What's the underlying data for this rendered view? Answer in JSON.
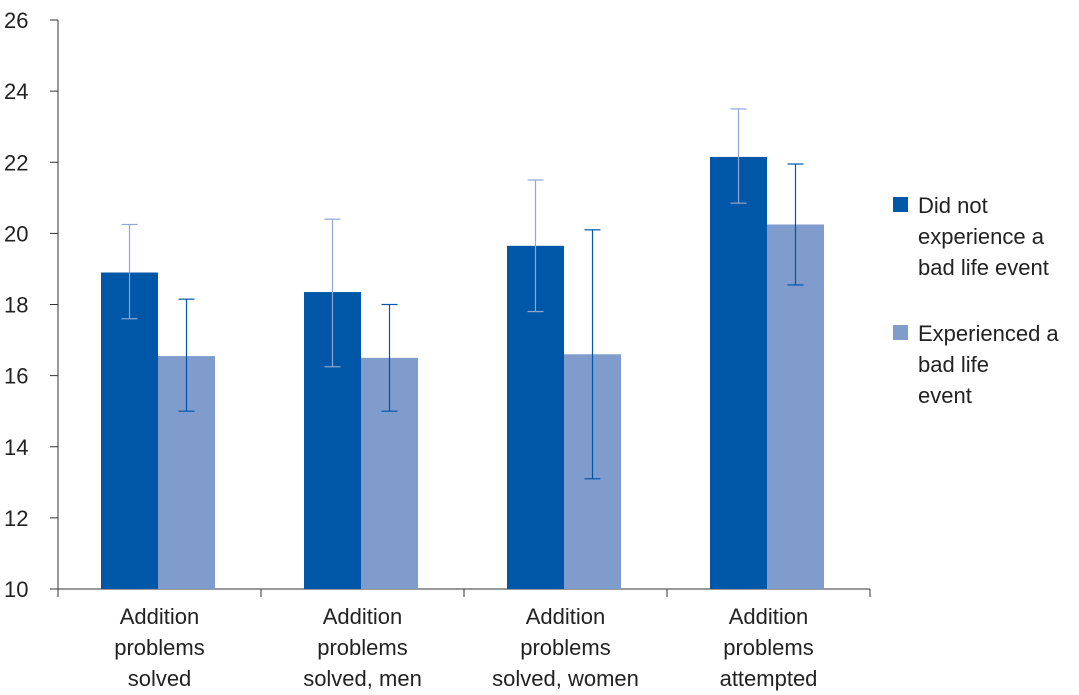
{
  "chart_data": {
    "type": "bar",
    "title": "",
    "xlabel": "",
    "ylabel": "",
    "ylim": [
      10,
      26
    ],
    "yticks": [
      10,
      12,
      14,
      16,
      18,
      20,
      22,
      24,
      26
    ],
    "grid": false,
    "legend_position": "right",
    "categories": [
      [
        "Addition",
        "problems",
        "solved"
      ],
      [
        "Addition",
        "problems",
        "solved, men"
      ],
      [
        "Addition",
        "problems",
        "solved, women"
      ],
      [
        "Addition",
        "problems",
        "attempted"
      ]
    ],
    "series": [
      {
        "name": [
          "Did not",
          "experience a",
          "bad life event"
        ],
        "color": "#0057a8",
        "values": [
          18.9,
          18.35,
          19.65,
          22.15
        ],
        "error_low": [
          17.6,
          16.25,
          17.8,
          20.85
        ],
        "error_high": [
          20.25,
          20.4,
          21.5,
          23.5
        ]
      },
      {
        "name": [
          "Experienced a",
          "bad life",
          "event"
        ],
        "color": "#7f9ccc",
        "values": [
          16.55,
          16.5,
          16.6,
          20.25
        ],
        "error_low": [
          15.0,
          15.0,
          13.1,
          18.55
        ],
        "error_high": [
          18.15,
          18.0,
          20.1,
          21.95
        ]
      }
    ]
  }
}
